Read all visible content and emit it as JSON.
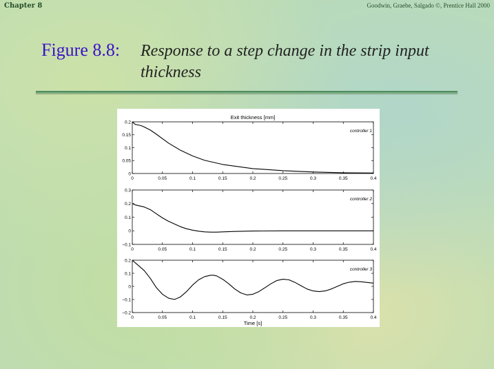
{
  "header": {
    "left": "Chapter 8",
    "right": "Goodwin, Graebe, Salgado ©, Prentice Hall 2000"
  },
  "slide": {
    "figure_number": "Figure 8.8:",
    "caption": "Response to a step change in the strip input thickness"
  },
  "colors": {
    "figure_number": "#3a12c8",
    "rule": "#3e7d52",
    "line": "#000000"
  },
  "chart_data": [
    {
      "type": "line",
      "title": "Exit thickness [mm]",
      "label": "controller 1",
      "xlabel": "",
      "xlim": [
        0,
        0.4
      ],
      "ylim": [
        0,
        0.2
      ],
      "xticks": [
        0,
        0.05,
        0.1,
        0.15,
        0.2,
        0.25,
        0.3,
        0.35,
        0.4
      ],
      "xtick_labels": [
        "0",
        "0.05",
        "0.1",
        "0.15",
        "0.2",
        "0.25",
        "0.3",
        "0.35",
        "0.4"
      ],
      "yticks": [
        0,
        0.05,
        0.1,
        0.15,
        0.2
      ],
      "ytick_labels": [
        "0",
        "0.05",
        "0.1",
        "0.15",
        "0.2"
      ],
      "grid": false,
      "x": [
        0,
        0.005,
        0.01,
        0.015,
        0.02,
        0.03,
        0.04,
        0.05,
        0.06,
        0.08,
        0.1,
        0.12,
        0.15,
        0.2,
        0.25,
        0.3,
        0.35,
        0.4
      ],
      "y": [
        0.2,
        0.19,
        0.188,
        0.185,
        0.18,
        0.168,
        0.152,
        0.135,
        0.118,
        0.09,
        0.068,
        0.051,
        0.035,
        0.019,
        0.011,
        0.006,
        0.003,
        0.002
      ]
    },
    {
      "type": "line",
      "title": "",
      "label": "controller 2",
      "xlabel": "",
      "xlim": [
        0,
        0.4
      ],
      "ylim": [
        -0.1,
        0.3
      ],
      "xticks": [
        0,
        0.05,
        0.1,
        0.15,
        0.2,
        0.25,
        0.3,
        0.35,
        0.4
      ],
      "xtick_labels": [
        "0",
        "0.05",
        "0.1",
        "0.15",
        "0.2",
        "0.25",
        "0.3",
        "0.35",
        "0.4"
      ],
      "yticks": [
        -0.1,
        0,
        0.1,
        0.2,
        0.3
      ],
      "ytick_labels": [
        "−0.1",
        "0",
        "0.1",
        "0.2",
        "0.3"
      ],
      "grid": false,
      "x": [
        0,
        0.005,
        0.01,
        0.02,
        0.03,
        0.04,
        0.05,
        0.06,
        0.07,
        0.08,
        0.09,
        0.1,
        0.11,
        0.12,
        0.13,
        0.14,
        0.15,
        0.17,
        0.2,
        0.25,
        0.3,
        0.35,
        0.4
      ],
      "y": [
        0.2,
        0.19,
        0.185,
        0.175,
        0.155,
        0.125,
        0.095,
        0.07,
        0.05,
        0.03,
        0.015,
        0.005,
        -0.003,
        -0.008,
        -0.01,
        -0.01,
        -0.008,
        -0.005,
        -0.002,
        0.0,
        0.0,
        0.0,
        0.0
      ]
    },
    {
      "type": "line",
      "title": "",
      "label": "controller 3",
      "xlabel": "Time [s]",
      "xlim": [
        0,
        0.4
      ],
      "ylim": [
        -0.2,
        0.2
      ],
      "xticks": [
        0,
        0.05,
        0.1,
        0.15,
        0.2,
        0.25,
        0.3,
        0.35,
        0.4
      ],
      "xtick_labels": [
        "0",
        "0.05",
        "0.1",
        "0.15",
        "0.2",
        "0.25",
        "0.3",
        "0.35",
        "0.4"
      ],
      "yticks": [
        -0.2,
        -0.1,
        0,
        0.1,
        0.2
      ],
      "ytick_labels": [
        "−0.2",
        "−0.1",
        "0",
        "0.1",
        "0.2"
      ],
      "grid": false,
      "x": [
        0,
        0.005,
        0.01,
        0.02,
        0.03,
        0.04,
        0.05,
        0.06,
        0.07,
        0.08,
        0.09,
        0.1,
        0.11,
        0.12,
        0.13,
        0.135,
        0.14,
        0.15,
        0.16,
        0.17,
        0.18,
        0.19,
        0.2,
        0.21,
        0.22,
        0.23,
        0.24,
        0.25,
        0.26,
        0.27,
        0.28,
        0.29,
        0.3,
        0.31,
        0.32,
        0.33,
        0.34,
        0.35,
        0.36,
        0.37,
        0.38,
        0.39,
        0.4
      ],
      "y": [
        0.2,
        0.18,
        0.16,
        0.12,
        0.06,
        -0.01,
        -0.06,
        -0.09,
        -0.1,
        -0.08,
        -0.04,
        0.01,
        0.05,
        0.075,
        0.085,
        0.085,
        0.08,
        0.055,
        0.02,
        -0.02,
        -0.05,
        -0.065,
        -0.06,
        -0.04,
        -0.01,
        0.02,
        0.045,
        0.055,
        0.05,
        0.03,
        0.005,
        -0.02,
        -0.035,
        -0.04,
        -0.035,
        -0.02,
        0.0,
        0.02,
        0.032,
        0.038,
        0.035,
        0.03,
        0.025
      ]
    }
  ]
}
